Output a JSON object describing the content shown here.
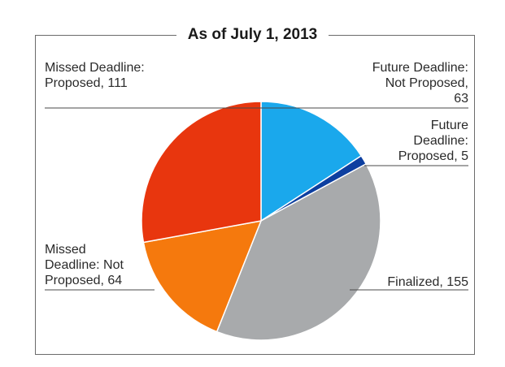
{
  "chart_data": {
    "type": "pie",
    "title": "As of July 1, 2013",
    "slices": [
      {
        "label": "Future Deadline: Not Proposed, 63",
        "value": 63,
        "color": "#1aa8ec"
      },
      {
        "label": "Future Deadline: Proposed, 5",
        "value": 5,
        "color": "#0d3fa0"
      },
      {
        "label": "Finalized, 155",
        "value": 155,
        "color": "#a8aaac"
      },
      {
        "label": "Missed Deadline: Not Proposed, 64",
        "value": 64,
        "color": "#f5790d"
      },
      {
        "label": "Missed Deadline: Proposed, 111",
        "value": 111,
        "color": "#e8360e"
      }
    ],
    "legend": "none"
  }
}
